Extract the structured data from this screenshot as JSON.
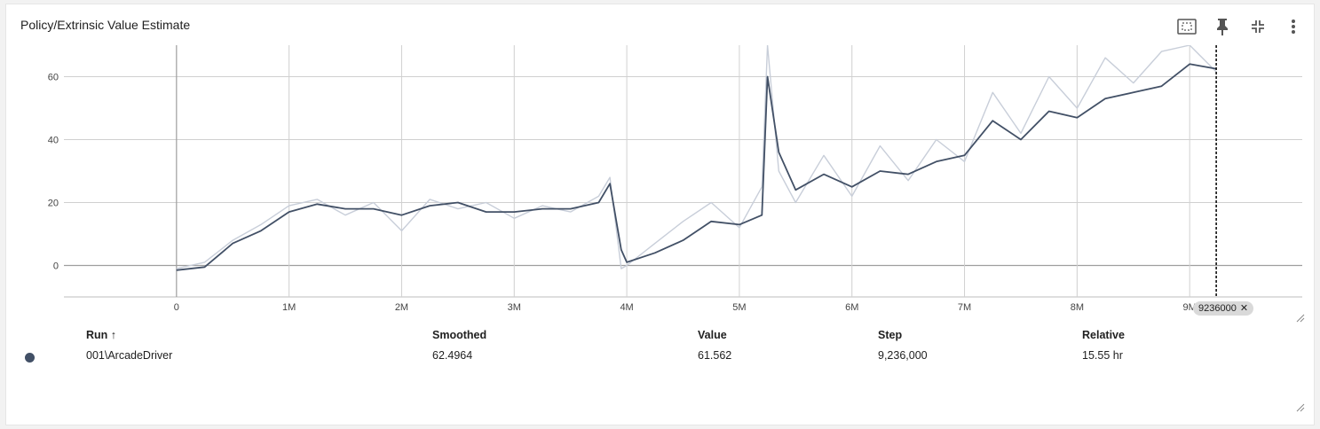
{
  "card": {
    "title": "Policy/Extrinsic Value Estimate",
    "toolbar": [
      {
        "name": "fit-domain-icon"
      },
      {
        "name": "pin-icon"
      },
      {
        "name": "collapse-icon"
      },
      {
        "name": "more-vert-icon"
      }
    ]
  },
  "colors": {
    "smoothed": "#425066",
    "raw": "#c8ced9",
    "accent": "#000000"
  },
  "chart_data": {
    "type": "line",
    "title": "",
    "xlabel": "",
    "ylabel": "",
    "xlim": [
      -1000000,
      10000000
    ],
    "ylim": [
      -10,
      70
    ],
    "x_ticks": [
      {
        "value": 0,
        "label": "0"
      },
      {
        "value": 1000000,
        "label": "1M"
      },
      {
        "value": 2000000,
        "label": "2M"
      },
      {
        "value": 3000000,
        "label": "3M"
      },
      {
        "value": 4000000,
        "label": "4M"
      },
      {
        "value": 5000000,
        "label": "5M"
      },
      {
        "value": 6000000,
        "label": "6M"
      },
      {
        "value": 7000000,
        "label": "7M"
      },
      {
        "value": 8000000,
        "label": "8M"
      },
      {
        "value": 9000000,
        "label": "9M"
      }
    ],
    "y_ticks": [
      {
        "value": 0,
        "label": "0"
      },
      {
        "value": 20,
        "label": "20"
      },
      {
        "value": 40,
        "label": "40"
      },
      {
        "value": 60,
        "label": "60"
      }
    ],
    "grid": true,
    "hover_step": 9236000,
    "hover_label": "9236000",
    "series": [
      {
        "name": "001\\ArcadeDriver",
        "role": "smoothed",
        "x": [
          0,
          250000,
          500000,
          750000,
          1000000,
          1250000,
          1500000,
          1750000,
          2000000,
          2250000,
          2500000,
          2750000,
          3000000,
          3250000,
          3500000,
          3750000,
          3850000,
          3950000,
          4000000,
          4250000,
          4500000,
          4750000,
          5000000,
          5200000,
          5250000,
          5350000,
          5500000,
          5750000,
          6000000,
          6250000,
          6500000,
          6750000,
          7000000,
          7250000,
          7500000,
          7750000,
          8000000,
          8250000,
          8500000,
          8750000,
          9000000,
          9236000
        ],
        "y": [
          -1.5,
          -0.5,
          7,
          11,
          17,
          19.5,
          18,
          18,
          16,
          19,
          20,
          17,
          17,
          18,
          18,
          20,
          26,
          5,
          1,
          4,
          8,
          14,
          13,
          16,
          60,
          36,
          24,
          29,
          25,
          30,
          29,
          33,
          35,
          46,
          40,
          49,
          47,
          53,
          55,
          57,
          64,
          62.4964
        ]
      },
      {
        "name": "001\\ArcadeDriver",
        "role": "raw",
        "x": [
          0,
          250000,
          500000,
          750000,
          1000000,
          1250000,
          1500000,
          1750000,
          2000000,
          2250000,
          2500000,
          2750000,
          3000000,
          3250000,
          3500000,
          3750000,
          3850000,
          3950000,
          4000000,
          4250000,
          4500000,
          4750000,
          5000000,
          5200000,
          5250000,
          5350000,
          5500000,
          5750000,
          6000000,
          6250000,
          6500000,
          6750000,
          7000000,
          7250000,
          7500000,
          7750000,
          8000000,
          8250000,
          8500000,
          8750000,
          9000000,
          9236000
        ],
        "y": [
          -1,
          1,
          8,
          13,
          19,
          21,
          16,
          20,
          11,
          21,
          18,
          20,
          15,
          19,
          17,
          22,
          28,
          -1,
          0,
          7,
          14,
          20,
          12,
          25,
          70,
          30,
          20,
          35,
          22,
          38,
          27,
          40,
          33,
          55,
          42,
          60,
          50,
          66,
          58,
          68,
          70,
          61.562
        ]
      }
    ]
  },
  "table": {
    "headers": {
      "run": "Run",
      "sort_arrow": "↑",
      "smoothed": "Smoothed",
      "value": "Value",
      "step": "Step",
      "relative": "Relative"
    },
    "rows": [
      {
        "run": "001\\ArcadeDriver",
        "smoothed": "62.4964",
        "value": "61.562",
        "step": "9,236,000",
        "relative": "15.55 hr"
      }
    ]
  }
}
